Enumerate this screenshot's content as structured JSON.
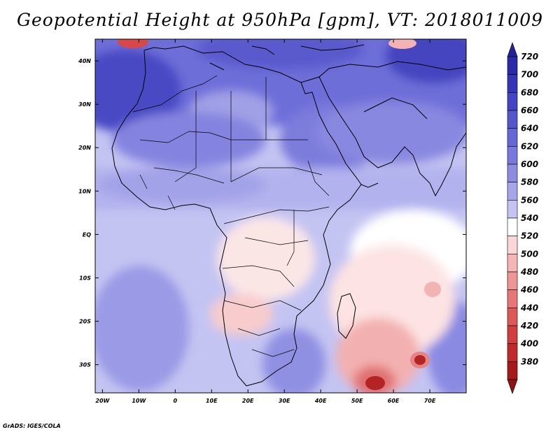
{
  "title": "Geopotential Height at 950hPa [gpm], VT: 2018011009",
  "credit": "GrADS: IGES/COLA",
  "map": {
    "lat_labels": [
      "40N",
      "30N",
      "20N",
      "10N",
      "EQ",
      "10S",
      "20S",
      "30S"
    ],
    "lat_values": [
      40,
      30,
      20,
      10,
      0,
      -10,
      -20,
      -30
    ],
    "lon_labels": [
      "20W",
      "10W",
      "0",
      "10E",
      "20E",
      "30E",
      "40E",
      "50E",
      "60E",
      "70E"
    ],
    "lon_values": [
      -20,
      -10,
      0,
      10,
      20,
      30,
      40,
      50,
      60,
      70
    ],
    "lon_range": [
      -22,
      80
    ],
    "lat_range": [
      -36.5,
      45
    ]
  },
  "colorbar": {
    "labels": [
      "720",
      "700",
      "680",
      "660",
      "640",
      "620",
      "600",
      "580",
      "560",
      "540",
      "520",
      "500",
      "480",
      "460",
      "440",
      "420",
      "400",
      "380"
    ],
    "colors": [
      "#2b2aa8",
      "#3535b8",
      "#4444c4",
      "#5555cc",
      "#6666d6",
      "#7878dd",
      "#8c8ce3",
      "#a5a5ea",
      "#c4c4f2",
      "#ffffff",
      "#fbd6d6",
      "#f6b5b5",
      "#ee9595",
      "#e87676",
      "#df5858",
      "#d23e3e",
      "#c02a2a",
      "#a51b1b"
    ]
  }
}
